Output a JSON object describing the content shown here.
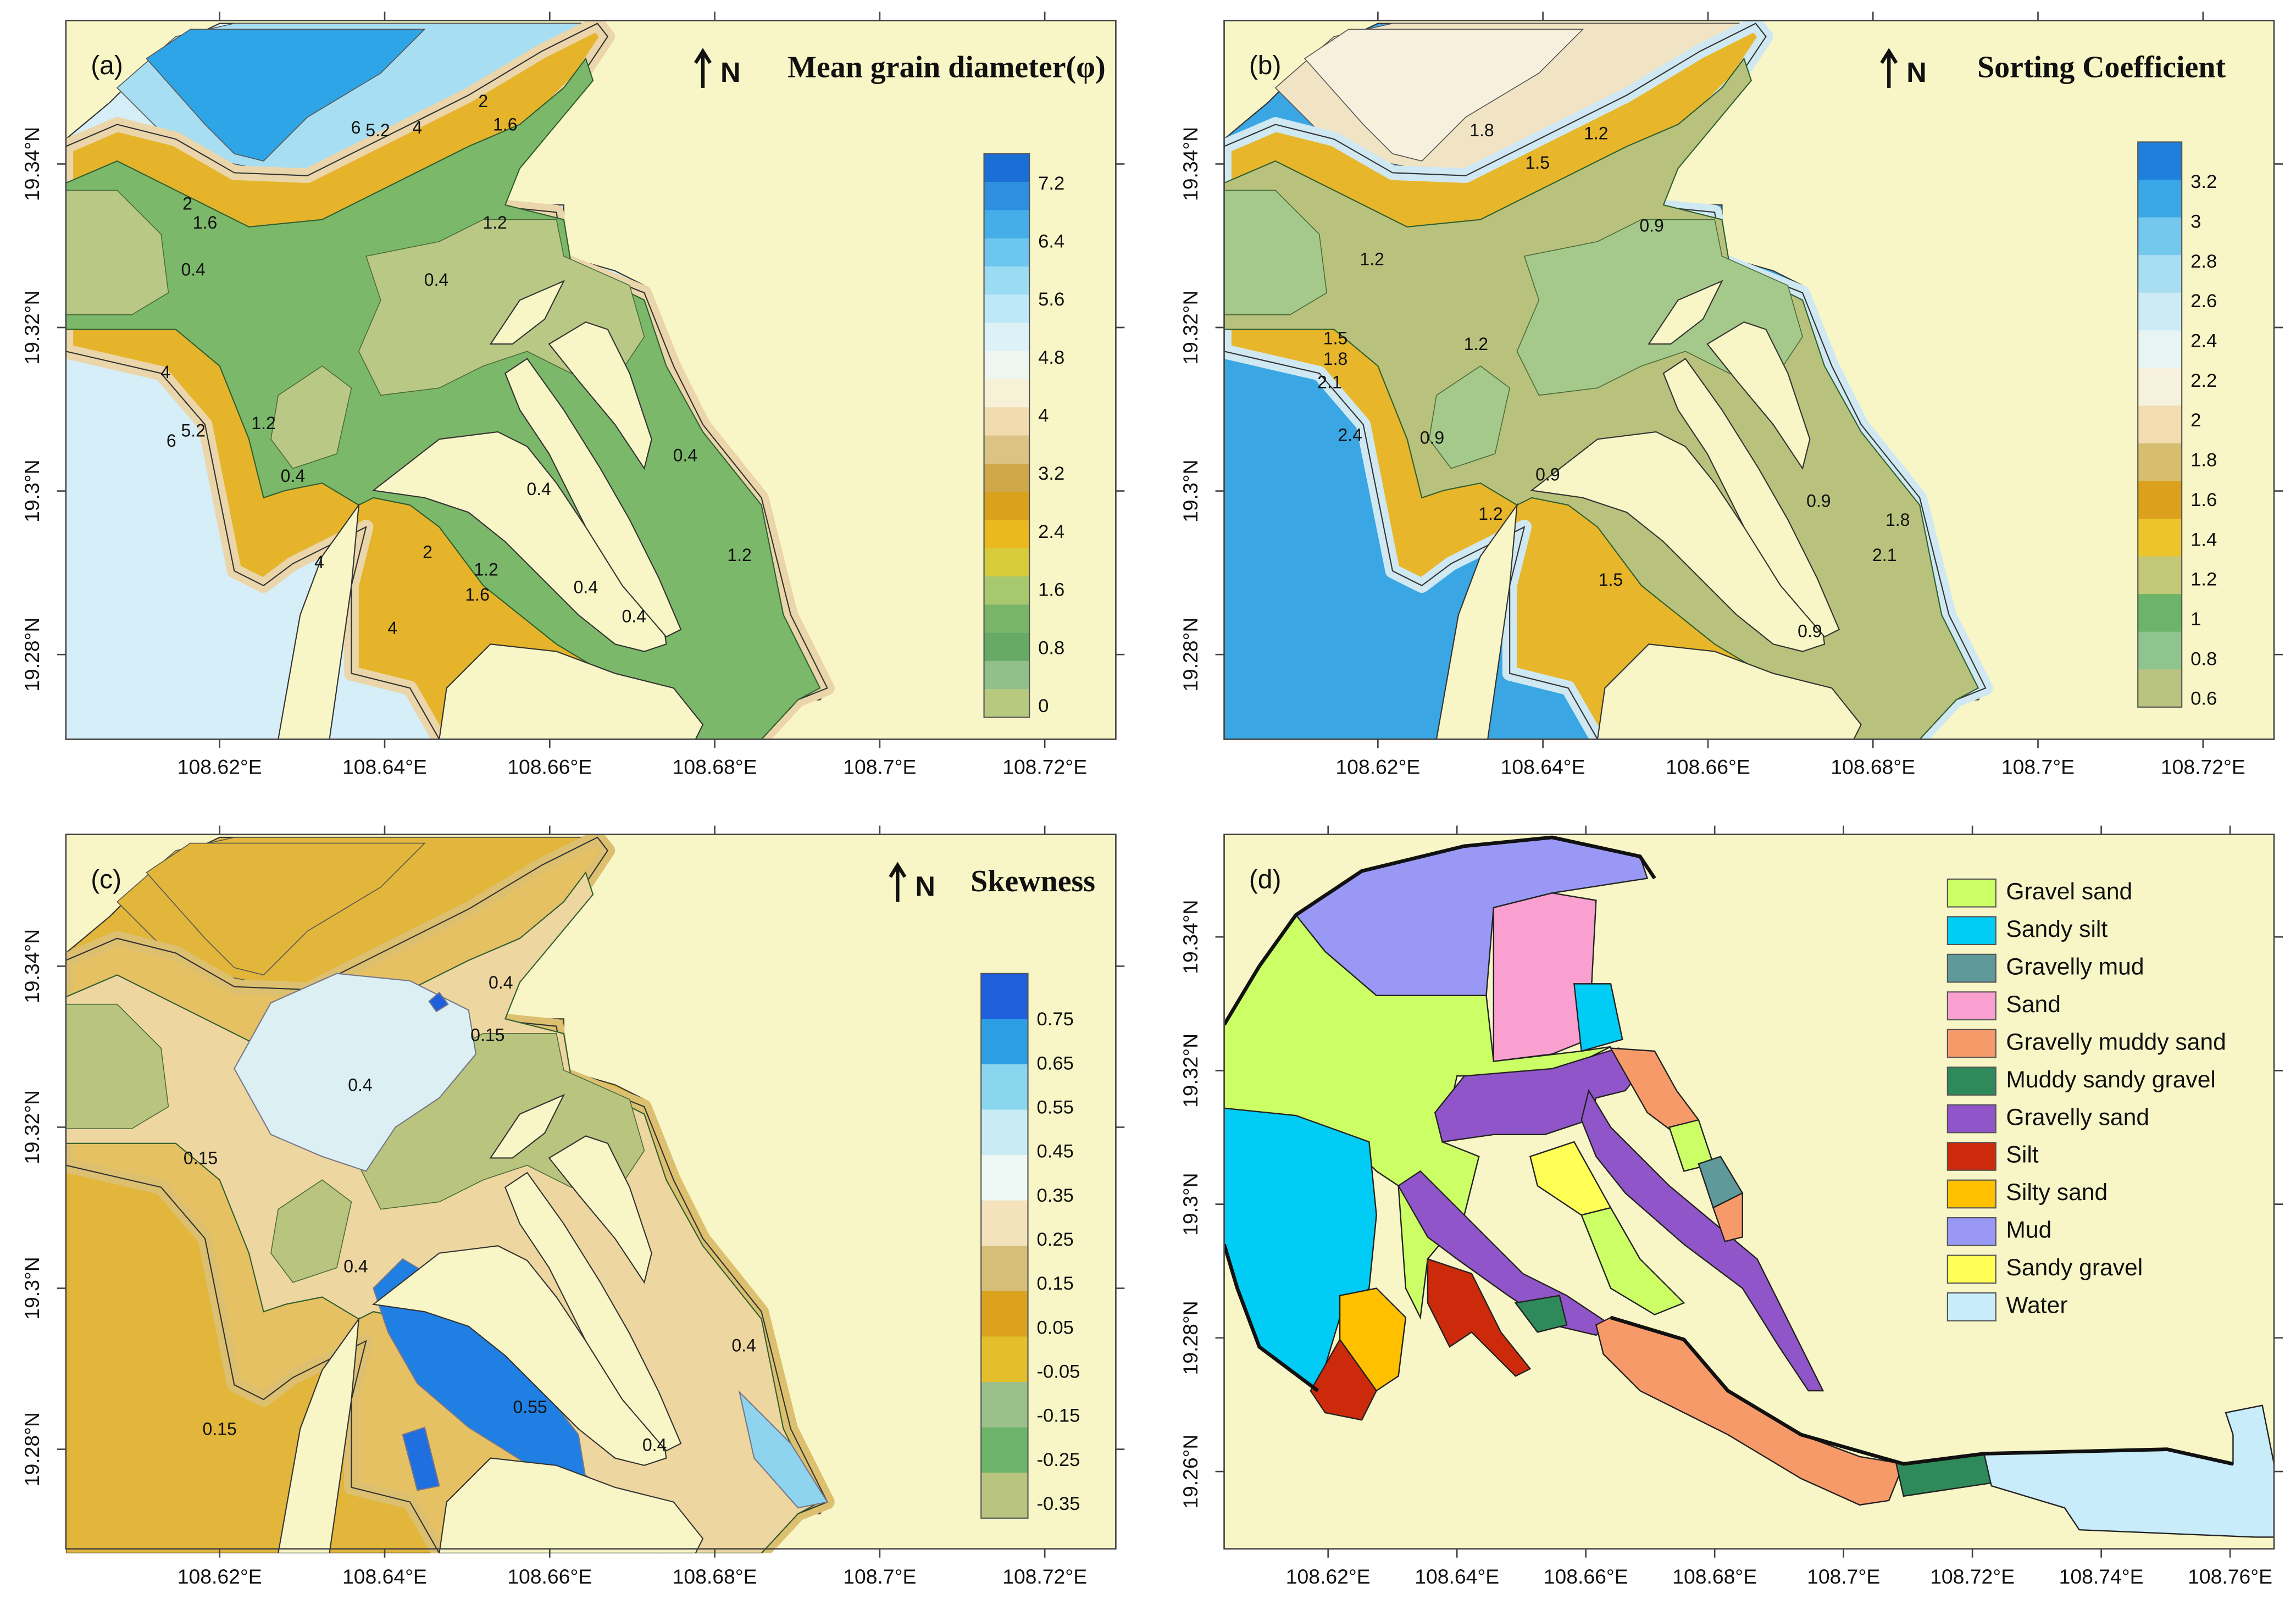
{
  "panels": [
    {
      "label": "(a)",
      "title": "Mean grain diameter(φ)",
      "north": "N",
      "xticks": [
        "108.62°E",
        "108.64°E",
        "108.66°E",
        "108.68°E",
        "108.7°E",
        "108.72°E"
      ],
      "yticks": [
        "19.34°N",
        "19.32°N",
        "19.3°N",
        "19.28°N"
      ],
      "colorbar": {
        "labels": [
          7.2,
          6.4,
          5.6,
          4.8,
          4,
          3.2,
          2.4,
          1.6,
          0.8,
          0
        ],
        "colors": [
          "#1a6fd6",
          "#2c8fe0",
          "#45aee8",
          "#6cc6ef",
          "#9bdcf3",
          "#bfe8f6",
          "#dcf2f7",
          "#eef6ef",
          "#f7f1d8",
          "#f0dcae",
          "#ddc286",
          "#cfa84a",
          "#d9a21a",
          "#eab91e",
          "#d8cc3c",
          "#a8c870",
          "#7ab66a",
          "#66aa66",
          "#92c08a",
          "#b7c97f"
        ]
      },
      "contour_labels": [
        "6",
        "5.2",
        "4",
        "2",
        "1.6",
        "2",
        "1.6",
        "0.4",
        "1.2",
        "0.4",
        "4",
        "5.2",
        "6",
        "1.2",
        "0.4",
        "4",
        "2",
        "1.2",
        "1.6",
        "4",
        "0.4",
        "0.4",
        "0.4",
        "0.4",
        "1.2"
      ]
    },
    {
      "label": "(b)",
      "title": "Sorting Coefficient",
      "north": "N",
      "xticks": [
        "108.62°E",
        "108.64°E",
        "108.66°E",
        "108.68°E",
        "108.7°E",
        "108.72°E"
      ],
      "yticks": [
        "19.34°N",
        "19.32°N",
        "19.3°N",
        "19.28°N"
      ],
      "colorbar": {
        "labels": [
          3.2,
          3,
          2.8,
          2.6,
          2.4,
          2.2,
          2,
          1.8,
          1.6,
          1.4,
          1.2,
          1,
          0.8,
          0.6
        ],
        "colors": [
          "#1f7fdc",
          "#3aa8e6",
          "#74c8ee",
          "#a8def2",
          "#cdebf5",
          "#e6f4f4",
          "#f6f1dc",
          "#f1ddb0",
          "#d7bd6e",
          "#dca11c",
          "#ecc52a",
          "#c2c878",
          "#6cb46a",
          "#8fc48e",
          "#b9c47e"
        ]
      },
      "contour_labels": [
        "1.8",
        "1.5",
        "1.2",
        "0.9",
        "1.2",
        "1.5",
        "1.8",
        "2.1",
        "2.4",
        "1.2",
        "0.9",
        "1.2",
        "0.9",
        "1.5",
        "0.9",
        "1.8",
        "2.1",
        "0.9"
      ]
    },
    {
      "label": "(c)",
      "title": "Skewness",
      "north": "N",
      "xticks": [
        "108.62°E",
        "108.64°E",
        "108.66°E",
        "108.68°E",
        "108.7°E",
        "108.72°E"
      ],
      "yticks": [
        "19.34°N",
        "19.32°N",
        "19.3°N",
        "19.28°N"
      ],
      "colorbar": {
        "labels": [
          0.75,
          0.65,
          0.55,
          0.45,
          0.35,
          0.25,
          0.15,
          0.05,
          -0.05,
          -0.15,
          -0.25,
          -0.35
        ],
        "colors": [
          "#1f5fdc",
          "#2c9ee4",
          "#8ad6ee",
          "#c9ecf4",
          "#eef8f4",
          "#f4e2bc",
          "#d6bd78",
          "#dca21e",
          "#e4be2c",
          "#9cc08a",
          "#6cb46a",
          "#b9c47e"
        ]
      },
      "contour_labels": [
        "0.4",
        "0.15",
        "0.4",
        "0.15",
        "0.4",
        "0.15",
        "0.55",
        "0.4",
        "0.4"
      ]
    },
    {
      "label": "(d)",
      "xticks": [
        "108.62°E",
        "108.64°E",
        "108.66°E",
        "108.68°E",
        "108.7°E",
        "108.72°E",
        "108.74°E",
        "108.76°E"
      ],
      "yticks": [
        "19.34°N",
        "19.32°N",
        "19.3°N",
        "19.28°N",
        "19.26°N"
      ],
      "legend": [
        {
          "name": "Gravel sand",
          "color": "#ccff66"
        },
        {
          "name": "Sandy silt",
          "color": "#00ccf5"
        },
        {
          "name": "Gravelly mud",
          "color": "#5f9999"
        },
        {
          "name": "Sand",
          "color": "#f9a0d0"
        },
        {
          "name": "Gravelly muddy sand",
          "color": "#f79a6a"
        },
        {
          "name": "Muddy sandy gravel",
          "color": "#2e8a5a"
        },
        {
          "name": "Gravelly sand",
          "color": "#9055c8"
        },
        {
          "name": "Silt",
          "color": "#cc2a0a"
        },
        {
          "name": "Silty sand",
          "color": "#ffc000"
        },
        {
          "name": "Mud",
          "color": "#9999f5"
        },
        {
          "name": "Sandy gravel",
          "color": "#ffff55"
        },
        {
          "name": "Water",
          "color": "#c8ecfa"
        }
      ]
    }
  ]
}
